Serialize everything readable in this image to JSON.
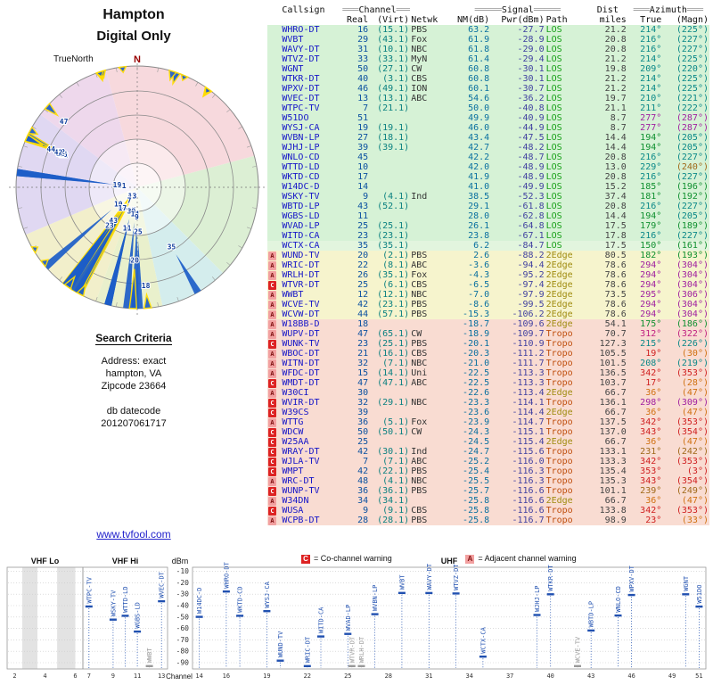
{
  "title": {
    "line1": "Hampton",
    "line2": "Digital Only"
  },
  "link_text": "www.tvfool.com",
  "search_criteria": {
    "heading": "Search Criteria",
    "lines": [
      "Address: exact",
      "hampton, VA",
      "Zipcode 23664",
      "db datecode",
      "201207061717"
    ]
  },
  "legend": {
    "co_label": "C",
    "co_text": "= Co-channel warning",
    "adj_label": "A",
    "adj_text": "= Adjacent channel warning"
  },
  "polar_labels": {
    "north": "N",
    "truenorth": "TrueNorth"
  },
  "table": {
    "bars": {
      "channel_pre": "═══",
      "channel_post": "═══",
      "signal_pre": "═════",
      "signal_post": "═════",
      "azimuth_pre": "═══",
      "azimuth_post": "═══"
    },
    "groups": {
      "callsign": "Callsign",
      "channel": "Channel",
      "signal": "Signal",
      "dist": "Dist",
      "azimuth": "Azimuth"
    },
    "h2": {
      "real": "Real",
      "virt": "(Virt)",
      "netwk": "Netwk",
      "nm": "NM(dB)",
      "pwr": "Pwr(dBm)",
      "path": "Path",
      "miles": "miles",
      "true": "True",
      "magn": "(Magn)"
    }
  },
  "colors": {
    "callsign": "#1515c8",
    "real": "#0a50a0",
    "virt": "#0a8080",
    "net": "#333333",
    "nm": "#0a70a0",
    "pwr": "#4040a0",
    "miles": "#444444",
    "path_colors": {
      "LOS": "#18a018",
      "2Edge": "#a08c10",
      "Tropo": "#c05010"
    },
    "row_buckets": [
      {
        "min": 20,
        "color": "#d6f2d6"
      },
      {
        "min": 5,
        "color": "#e2f5de"
      },
      {
        "min": -16,
        "color": "#f6f4cd"
      },
      {
        "min": -999,
        "color": "#f9dcd2"
      }
    ],
    "azimuth_ranges": [
      {
        "from": 330,
        "to": 25,
        "color": "#d02020"
      },
      {
        "from": 25,
        "to": 60,
        "color": "#d07010"
      },
      {
        "from": 60,
        "to": 130,
        "color": "#809010"
      },
      {
        "from": 130,
        "to": 205,
        "color": "#109030"
      },
      {
        "from": 205,
        "to": 230,
        "color": "#0a8888"
      },
      {
        "from": 230,
        "to": 265,
        "color": "#a06818"
      },
      {
        "from": 265,
        "to": 310,
        "color": "#a020a0"
      },
      {
        "from": 310,
        "to": 330,
        "color": "#c02080"
      }
    ],
    "warn_co": "#dd2222",
    "warn_adj": "#f2a0a0",
    "wedge": "#1c5dc8",
    "wedge_flag": "#ffdd00",
    "spectrum_station": "#2050b0",
    "spectrum_weak": "#999999",
    "grid": "#c8c8c8",
    "polar_sectors": [
      {
        "from": 345,
        "to": 75,
        "color": "#f7d9dd"
      },
      {
        "from": 75,
        "to": 135,
        "color": "#dcefd4"
      },
      {
        "from": 135,
        "to": 168,
        "color": "#d4eded"
      },
      {
        "from": 168,
        "to": 200,
        "color": "#e9f0cc"
      },
      {
        "from": 200,
        "to": 247,
        "color": "#f2efcb"
      },
      {
        "from": 247,
        "to": 307,
        "color": "#e0d8f2"
      },
      {
        "from": 307,
        "to": 345,
        "color": "#eed8ec"
      }
    ]
  },
  "chart_data": {
    "polar": {
      "type": "polar",
      "title": "Hampton Digital Only",
      "radius_metric": "NM(dB)",
      "rings": 5
    },
    "spectrum": {
      "type": "scatter",
      "ylabel": "dBm",
      "xlabel": "Channel",
      "ylim": [
        -100,
        -8
      ],
      "yticks": [
        -10,
        -20,
        -30,
        -40,
        -50,
        -60,
        -70,
        -80,
        -90
      ],
      "weak_threshold": -95,
      "plot_floor": -93,
      "bands": [
        {
          "label": "VHF Lo",
          "from": 2,
          "to": 6,
          "ticks": [
            2,
            4,
            6
          ]
        },
        {
          "label": "VHF Hi",
          "from": 7,
          "to": 13,
          "ticks": [
            7,
            9,
            11,
            13
          ]
        },
        {
          "label": "UHF",
          "from": 14,
          "to": 51,
          "ticks": [
            14,
            16,
            19,
            22,
            25,
            28,
            31,
            34,
            37,
            40,
            43,
            46,
            49,
            51
          ]
        }
      ],
      "shaded_channels": [
        [
          3,
          4
        ],
        [
          5.3,
          6.5
        ]
      ]
    },
    "stations": [
      {
        "call": "WHRO-DT",
        "real": "16",
        "virt": "15.1",
        "net": "PBS",
        "nm": "63.2",
        "pwr": "-27.7",
        "path": "LOS",
        "miles": "21.2",
        "az": "214",
        "magn": "225",
        "warn": ""
      },
      {
        "call": "WVBT",
        "real": "29",
        "virt": "43.1",
        "net": "Fox",
        "nm": "61.9",
        "pwr": "-28.9",
        "path": "LOS",
        "miles": "20.8",
        "az": "216",
        "magn": "227",
        "warn": ""
      },
      {
        "call": "WAVY-DT",
        "real": "31",
        "virt": "10.1",
        "net": "NBC",
        "nm": "61.8",
        "pwr": "-29.0",
        "path": "LOS",
        "miles": "20.8",
        "az": "216",
        "magn": "227",
        "warn": ""
      },
      {
        "call": "WTVZ-DT",
        "real": "33",
        "virt": "33.1",
        "net": "MyN",
        "nm": "61.4",
        "pwr": "-29.4",
        "path": "LOS",
        "miles": "21.2",
        "az": "214",
        "magn": "225",
        "warn": ""
      },
      {
        "call": "WGNT",
        "real": "50",
        "virt": "27.1",
        "net": "CW",
        "nm": "60.8",
        "pwr": "-30.1",
        "path": "LOS",
        "miles": "19.8",
        "az": "209",
        "magn": "220",
        "warn": ""
      },
      {
        "call": "WTKR-DT",
        "real": "40",
        "virt": "3.1",
        "net": "CBS",
        "nm": "60.8",
        "pwr": "-30.1",
        "path": "LOS",
        "miles": "21.2",
        "az": "214",
        "magn": "225",
        "warn": ""
      },
      {
        "call": "WPXV-DT",
        "real": "46",
        "virt": "49.1",
        "net": "ION",
        "nm": "60.1",
        "pwr": "-30.7",
        "path": "LOS",
        "miles": "21.2",
        "az": "214",
        "magn": "225",
        "warn": ""
      },
      {
        "call": "WVEC-DT",
        "real": "13",
        "virt": "13.1",
        "net": "ABC",
        "nm": "54.6",
        "pwr": "-36.2",
        "path": "LOS",
        "miles": "19.7",
        "az": "210",
        "magn": "221",
        "warn": ""
      },
      {
        "call": "WTPC-TV",
        "real": "7",
        "virt": "21.1",
        "net": "",
        "nm": "50.0",
        "pwr": "-40.8",
        "path": "LOS",
        "miles": "21.1",
        "az": "211",
        "magn": "222",
        "warn": ""
      },
      {
        "call": "W51DO",
        "real": "51",
        "virt": "",
        "net": "",
        "nm": "49.9",
        "pwr": "-40.9",
        "path": "LOS",
        "miles": "8.7",
        "az": "277",
        "magn": "287",
        "warn": ""
      },
      {
        "call": "WYSJ-CA",
        "real": "19",
        "virt": "19.1",
        "net": "",
        "nm": "46.0",
        "pwr": "-44.9",
        "path": "LOS",
        "miles": "8.7",
        "az": "277",
        "magn": "287",
        "warn": ""
      },
      {
        "call": "WVBN-LP",
        "real": "27",
        "virt": "18.1",
        "net": "",
        "nm": "43.4",
        "pwr": "-47.5",
        "path": "LOS",
        "miles": "14.4",
        "az": "194",
        "magn": "205",
        "warn": ""
      },
      {
        "call": "WJHJ-LP",
        "real": "39",
        "virt": "39.1",
        "net": "",
        "nm": "42.7",
        "pwr": "-48.2",
        "path": "LOS",
        "miles": "14.4",
        "az": "194",
        "magn": "205",
        "warn": ""
      },
      {
        "call": "WNLO-CD",
        "real": "45",
        "virt": "",
        "net": "",
        "nm": "42.2",
        "pwr": "-48.7",
        "path": "LOS",
        "miles": "20.8",
        "az": "216",
        "magn": "227",
        "warn": ""
      },
      {
        "call": "WTTD-LD",
        "real": "10",
        "virt": "",
        "net": "",
        "nm": "42.0",
        "pwr": "-48.9",
        "path": "LOS",
        "miles": "13.0",
        "az": "229",
        "magn": "240",
        "warn": ""
      },
      {
        "call": "WKTD-CD",
        "real": "17",
        "virt": "",
        "net": "",
        "nm": "41.9",
        "pwr": "-48.9",
        "path": "LOS",
        "miles": "20.8",
        "az": "216",
        "magn": "227",
        "warn": ""
      },
      {
        "call": "W14DC-D",
        "real": "14",
        "virt": "",
        "net": "",
        "nm": "41.0",
        "pwr": "-49.9",
        "path": "LOS",
        "miles": "15.2",
        "az": "185",
        "magn": "196",
        "warn": ""
      },
      {
        "call": "WSKY-TV",
        "real": "9",
        "virt": "4.1",
        "net": "Ind",
        "nm": "38.5",
        "pwr": "-52.3",
        "path": "LOS",
        "miles": "37.4",
        "az": "181",
        "magn": "192",
        "warn": ""
      },
      {
        "call": "WBTD-LP",
        "real": "43",
        "virt": "52.1",
        "net": "",
        "nm": "29.1",
        "pwr": "-61.8",
        "path": "LOS",
        "miles": "20.8",
        "az": "216",
        "magn": "227",
        "warn": ""
      },
      {
        "call": "WGBS-LD",
        "real": "11",
        "virt": "",
        "net": "",
        "nm": "28.0",
        "pwr": "-62.8",
        "path": "LOS",
        "miles": "14.4",
        "az": "194",
        "magn": "205",
        "warn": ""
      },
      {
        "call": "WVAD-LP",
        "real": "25",
        "virt": "25.1",
        "net": "",
        "nm": "26.1",
        "pwr": "-64.8",
        "path": "LOS",
        "miles": "17.5",
        "az": "179",
        "magn": "189",
        "warn": ""
      },
      {
        "call": "WITD-CA",
        "real": "23",
        "virt": "23.1",
        "net": "",
        "nm": "23.8",
        "pwr": "-67.1",
        "path": "LOS",
        "miles": "17.8",
        "az": "216",
        "magn": "227",
        "warn": ""
      },
      {
        "call": "WCTX-CA",
        "real": "35",
        "virt": "35.1",
        "net": "",
        "nm": "6.2",
        "pwr": "-84.7",
        "path": "LOS",
        "miles": "17.5",
        "az": "150",
        "magn": "161",
        "warn": ""
      },
      {
        "call": "WUND-TV",
        "real": "20",
        "virt": "2.1",
        "net": "PBS",
        "nm": "2.6",
        "pwr": "-88.2",
        "path": "2Edge",
        "miles": "80.5",
        "az": "182",
        "magn": "193",
        "warn": "A"
      },
      {
        "call": "WRIC-DT",
        "real": "22",
        "virt": "8.1",
        "net": "ABC",
        "nm": "-3.6",
        "pwr": "-94.4",
        "path": "2Edge",
        "miles": "78.6",
        "az": "294",
        "magn": "304",
        "warn": "A"
      },
      {
        "call": "WRLH-DT",
        "real": "26",
        "virt": "35.1",
        "net": "Fox",
        "nm": "-4.3",
        "pwr": "-95.2",
        "path": "2Edge",
        "miles": "78.6",
        "az": "294",
        "magn": "304",
        "warn": "A"
      },
      {
        "call": "WTVR-DT",
        "real": "25",
        "virt": "6.1",
        "net": "CBS",
        "nm": "-6.5",
        "pwr": "-97.4",
        "path": "2Edge",
        "miles": "78.6",
        "az": "294",
        "magn": "304",
        "warn": "C"
      },
      {
        "call": "WWBT",
        "real": "12",
        "virt": "12.1",
        "net": "NBC",
        "nm": "-7.0",
        "pwr": "-97.9",
        "path": "2Edge",
        "miles": "73.5",
        "az": "295",
        "magn": "306",
        "warn": "A"
      },
      {
        "call": "WCVE-TV",
        "real": "42",
        "virt": "23.1",
        "net": "PBS",
        "nm": "-8.6",
        "pwr": "-99.5",
        "path": "2Edge",
        "miles": "78.6",
        "az": "294",
        "magn": "304",
        "warn": "A"
      },
      {
        "call": "WCVW-DT",
        "real": "44",
        "virt": "57.1",
        "net": "PBS",
        "nm": "-15.3",
        "pwr": "-106.2",
        "path": "2Edge",
        "miles": "78.6",
        "az": "294",
        "magn": "304",
        "warn": "A"
      },
      {
        "call": "W18BB-D",
        "real": "18",
        "virt": "",
        "net": "",
        "nm": "-18.7",
        "pwr": "-109.6",
        "path": "2Edge",
        "miles": "54.1",
        "az": "175",
        "magn": "186",
        "warn": "A"
      },
      {
        "call": "WUPV-DT",
        "real": "47",
        "virt": "65.1",
        "net": "CW",
        "nm": "-18.9",
        "pwr": "-109.7",
        "path": "Tropo",
        "miles": "70.7",
        "az": "312",
        "magn": "322",
        "warn": "A"
      },
      {
        "call": "WUNK-TV",
        "real": "23",
        "virt": "25.1",
        "net": "PBS",
        "nm": "-20.1",
        "pwr": "-110.9",
        "path": "Tropo",
        "miles": "127.3",
        "az": "215",
        "magn": "226",
        "warn": "C"
      },
      {
        "call": "WBOC-DT",
        "real": "21",
        "virt": "16.1",
        "net": "CBS",
        "nm": "-20.3",
        "pwr": "-111.2",
        "path": "Tropo",
        "miles": "105.5",
        "az": "19",
        "magn": "30",
        "warn": "A"
      },
      {
        "call": "WITN-DT",
        "real": "32",
        "virt": "7.1",
        "net": "NBC",
        "nm": "-21.0",
        "pwr": "-111.7",
        "path": "Tropo",
        "miles": "101.5",
        "az": "208",
        "magn": "219",
        "warn": "A"
      },
      {
        "call": "WFDC-DT",
        "real": "15",
        "virt": "14.1",
        "net": "Uni",
        "nm": "-22.5",
        "pwr": "-113.3",
        "path": "Tropo",
        "miles": "136.5",
        "az": "342",
        "magn": "353",
        "warn": "A"
      },
      {
        "call": "WMDT-DT",
        "real": "47",
        "virt": "47.1",
        "net": "ABC",
        "nm": "-22.5",
        "pwr": "-113.3",
        "path": "Tropo",
        "miles": "103.7",
        "az": "17",
        "magn": "28",
        "warn": "C"
      },
      {
        "call": "W30CI",
        "real": "30",
        "virt": "",
        "net": "",
        "nm": "-22.6",
        "pwr": "-113.4",
        "path": "2Edge",
        "miles": "66.7",
        "az": "36",
        "magn": "47",
        "warn": "A"
      },
      {
        "call": "WVIR-DT",
        "real": "32",
        "virt": "29.1",
        "net": "NBC",
        "nm": "-23.3",
        "pwr": "-114.1",
        "path": "Tropo",
        "miles": "136.1",
        "az": "298",
        "magn": "309",
        "warn": "C"
      },
      {
        "call": "W39CS",
        "real": "39",
        "virt": "",
        "net": "",
        "nm": "-23.6",
        "pwr": "-114.4",
        "path": "2Edge",
        "miles": "66.7",
        "az": "36",
        "magn": "47",
        "warn": "C"
      },
      {
        "call": "WTTG",
        "real": "36",
        "virt": "5.1",
        "net": "Fox",
        "nm": "-23.9",
        "pwr": "-114.7",
        "path": "Tropo",
        "miles": "137.5",
        "az": "342",
        "magn": "353",
        "warn": "A"
      },
      {
        "call": "WDCW",
        "real": "50",
        "virt": "50.1",
        "net": "CW",
        "nm": "-24.3",
        "pwr": "-115.1",
        "path": "Tropo",
        "miles": "137.0",
        "az": "343",
        "magn": "354",
        "warn": "C"
      },
      {
        "call": "W25AA",
        "real": "25",
        "virt": "",
        "net": "",
        "nm": "-24.5",
        "pwr": "-115.4",
        "path": "2Edge",
        "miles": "66.7",
        "az": "36",
        "magn": "47",
        "warn": "C"
      },
      {
        "call": "WRAY-DT",
        "real": "42",
        "virt": "30.1",
        "net": "Ind",
        "nm": "-24.7",
        "pwr": "-115.6",
        "path": "Tropo",
        "miles": "133.1",
        "az": "231",
        "magn": "242",
        "warn": "C"
      },
      {
        "call": "WJLA-TV",
        "real": "7",
        "virt": "7.1",
        "net": "ABC",
        "nm": "-25.2",
        "pwr": "-116.0",
        "path": "Tropo",
        "miles": "133.3",
        "az": "342",
        "magn": "353",
        "warn": "C"
      },
      {
        "call": "WMPT",
        "real": "42",
        "virt": "22.1",
        "net": "PBS",
        "nm": "-25.4",
        "pwr": "-116.3",
        "path": "Tropo",
        "miles": "135.4",
        "az": "353",
        "magn": "3",
        "warn": "C"
      },
      {
        "call": "WRC-DT",
        "real": "48",
        "virt": "4.1",
        "net": "NBC",
        "nm": "-25.5",
        "pwr": "-116.3",
        "path": "Tropo",
        "miles": "135.3",
        "az": "343",
        "magn": "354",
        "warn": "A"
      },
      {
        "call": "WUNP-TV",
        "real": "36",
        "virt": "36.1",
        "net": "PBS",
        "nm": "-25.7",
        "pwr": "-116.6",
        "path": "Tropo",
        "miles": "101.1",
        "az": "239",
        "magn": "249",
        "warn": "C"
      },
      {
        "call": "W34DN",
        "real": "34",
        "virt": "34.1",
        "net": "",
        "nm": "-25.8",
        "pwr": "-116.6",
        "path": "2Edge",
        "miles": "66.7",
        "az": "36",
        "magn": "47",
        "warn": "A"
      },
      {
        "call": "WUSA",
        "real": "9",
        "virt": "9.1",
        "net": "CBS",
        "nm": "-25.8",
        "pwr": "-116.6",
        "path": "Tropo",
        "miles": "133.8",
        "az": "342",
        "magn": "353",
        "warn": "C"
      },
      {
        "call": "WCPB-DT",
        "real": "28",
        "virt": "28.1",
        "net": "PBS",
        "nm": "-25.8",
        "pwr": "-116.7",
        "path": "Tropo",
        "miles": "98.9",
        "az": "23",
        "magn": "33",
        "warn": "A"
      }
    ]
  }
}
